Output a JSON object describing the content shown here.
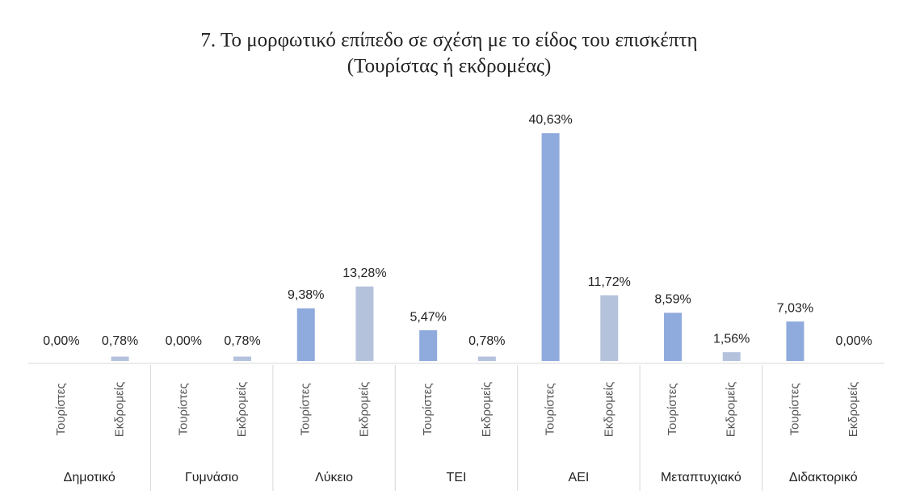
{
  "chart_data": {
    "type": "bar",
    "title": "7. Το μορφωτικό επίπεδο σε σχέση με το είδος του επισκέπτη",
    "subtitle": "(Τουρίστας ή εκδρομέας)",
    "categories": [
      "Δημοτικό",
      "Γυμνάσιο",
      "Λύκειο",
      "ΤΕΙ",
      "ΑΕΙ",
      "Μεταπτυχιακό",
      "Διδακτορικό"
    ],
    "series": [
      {
        "name": "Τουρίστες",
        "color": "#8faadc",
        "values": [
          0,
          0,
          9.38,
          5.47,
          40.63,
          8.59,
          7.03
        ],
        "value_labels": [
          "0,00%",
          "0,00%",
          "9,38%",
          "5,47%",
          "40,63%",
          "8,59%",
          "7,03%"
        ]
      },
      {
        "name": "Εκδρομείς",
        "color": "#b4c2dc",
        "values": [
          0.78,
          0.78,
          13.28,
          0.78,
          11.72,
          1.56,
          0
        ],
        "value_labels": [
          "0,78%",
          "0,78%",
          "13,28%",
          "0,78%",
          "11,72%",
          "1,56%",
          "0,00%"
        ]
      }
    ]
  }
}
